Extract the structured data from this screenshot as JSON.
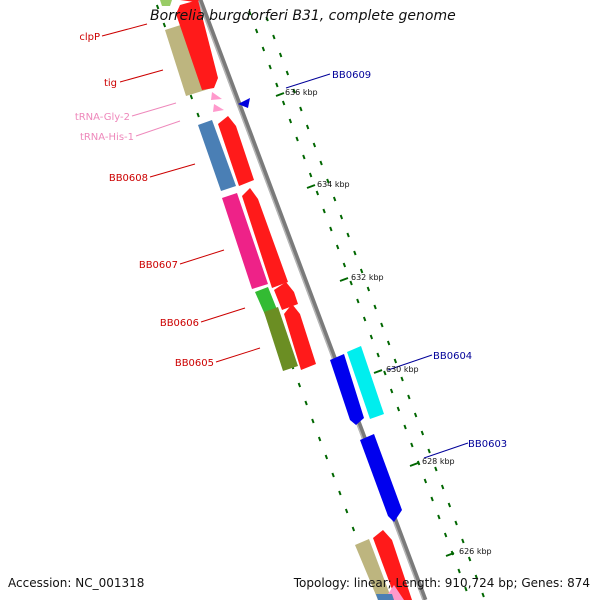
{
  "title": "Borrelia burgdorferi B31, complete genome",
  "accession": "Accession: NC_001318",
  "topology": "Topology: linear; Length: 910,724 bp; Genes: 874",
  "colors": {
    "label_red": "#cc0000",
    "label_pink": "#ee88bb",
    "label_blue": "#000099",
    "tick_green": "#006600",
    "axis_grey": "#888888"
  },
  "scale_labels": [
    "636 kbp",
    "634 kbp",
    "632 kbp",
    "630 kbp",
    "628 kbp",
    "626 kbp"
  ],
  "left_labels": [
    {
      "name": "clpP",
      "color": "red"
    },
    {
      "name": "tig",
      "color": "red"
    },
    {
      "name": "tRNA-Gly-2",
      "color": "pink"
    },
    {
      "name": "tRNA-His-1",
      "color": "pink"
    },
    {
      "name": "BB0608",
      "color": "red"
    },
    {
      "name": "BB0607",
      "color": "red"
    },
    {
      "name": "BB0606",
      "color": "red"
    },
    {
      "name": "BB0605",
      "color": "red"
    }
  ],
  "right_labels": [
    {
      "name": "BB0609",
      "color": "blue"
    },
    {
      "name": "BB0604",
      "color": "blue"
    },
    {
      "name": "BB0603",
      "color": "blue"
    }
  ]
}
